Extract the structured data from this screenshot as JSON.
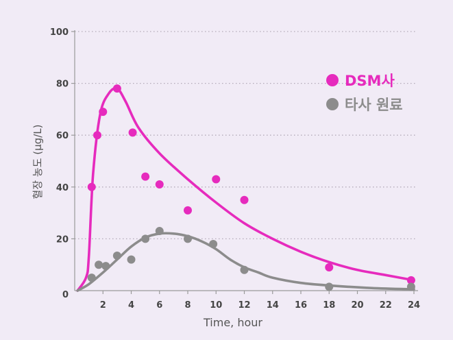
{
  "chart_data": {
    "type": "scatter",
    "title": "",
    "xlabel": "Time, hour",
    "ylabel": "혈장 농도 (µg/L)",
    "xlim": [
      0,
      24
    ],
    "ylim": [
      0,
      100
    ],
    "x_ticks": [
      "2",
      "4",
      "6",
      "8",
      "10",
      "12",
      "14",
      "16",
      "18",
      "20",
      "22",
      "24"
    ],
    "y_ticks": [
      "0",
      "20",
      "40",
      "60",
      "80",
      "100"
    ],
    "grid": "horizontal dotted",
    "legend_position": "top-right",
    "series": [
      {
        "name": "DSM사",
        "color": "#e62bbd",
        "points": [
          {
            "x": 1.2,
            "y": 40
          },
          {
            "x": 1.6,
            "y": 60
          },
          {
            "x": 2.0,
            "y": 69
          },
          {
            "x": 3.0,
            "y": 78
          },
          {
            "x": 4.1,
            "y": 61
          },
          {
            "x": 5.0,
            "y": 44
          },
          {
            "x": 6.0,
            "y": 41
          },
          {
            "x": 8.0,
            "y": 31
          },
          {
            "x": 10.0,
            "y": 43
          },
          {
            "x": 12.0,
            "y": 35
          },
          {
            "x": 18.0,
            "y": 9
          },
          {
            "x": 23.8,
            "y": 4
          }
        ],
        "curve": [
          {
            "x": 0.2,
            "y": 0
          },
          {
            "x": 0.8,
            "y": 5
          },
          {
            "x": 1.0,
            "y": 13
          },
          {
            "x": 1.3,
            "y": 45
          },
          {
            "x": 1.8,
            "y": 68
          },
          {
            "x": 2.4,
            "y": 76
          },
          {
            "x": 3.0,
            "y": 78
          },
          {
            "x": 3.6,
            "y": 73
          },
          {
            "x": 4.5,
            "y": 63
          },
          {
            "x": 6.0,
            "y": 53
          },
          {
            "x": 8.0,
            "y": 43
          },
          {
            "x": 10.0,
            "y": 34
          },
          {
            "x": 12.0,
            "y": 26
          },
          {
            "x": 14.0,
            "y": 20
          },
          {
            "x": 16.0,
            "y": 15
          },
          {
            "x": 18.0,
            "y": 11
          },
          {
            "x": 20.0,
            "y": 8
          },
          {
            "x": 22.0,
            "y": 6
          },
          {
            "x": 24.0,
            "y": 4
          }
        ]
      },
      {
        "name": "타사 원료",
        "color": "#8c8c8c",
        "points": [
          {
            "x": 1.2,
            "y": 5
          },
          {
            "x": 1.7,
            "y": 10
          },
          {
            "x": 2.2,
            "y": 9.5
          },
          {
            "x": 3.0,
            "y": 13.5
          },
          {
            "x": 4.0,
            "y": 12
          },
          {
            "x": 5.0,
            "y": 20
          },
          {
            "x": 6.0,
            "y": 23
          },
          {
            "x": 8.0,
            "y": 20
          },
          {
            "x": 9.8,
            "y": 18
          },
          {
            "x": 12.0,
            "y": 8
          },
          {
            "x": 18.0,
            "y": 1.5
          },
          {
            "x": 23.8,
            "y": 1.5
          }
        ],
        "curve": [
          {
            "x": 0.2,
            "y": 0
          },
          {
            "x": 1.0,
            "y": 2.5
          },
          {
            "x": 2.0,
            "y": 7
          },
          {
            "x": 3.0,
            "y": 12
          },
          {
            "x": 4.0,
            "y": 17
          },
          {
            "x": 5.0,
            "y": 20.5
          },
          {
            "x": 6.0,
            "y": 22
          },
          {
            "x": 7.0,
            "y": 22
          },
          {
            "x": 8.0,
            "y": 21
          },
          {
            "x": 9.0,
            "y": 19
          },
          {
            "x": 10.0,
            "y": 16
          },
          {
            "x": 11.0,
            "y": 12
          },
          {
            "x": 12.0,
            "y": 9
          },
          {
            "x": 13.0,
            "y": 7
          },
          {
            "x": 14.0,
            "y": 5
          },
          {
            "x": 16.0,
            "y": 3
          },
          {
            "x": 18.0,
            "y": 2
          },
          {
            "x": 21.0,
            "y": 1
          },
          {
            "x": 24.0,
            "y": 0.5
          }
        ]
      }
    ]
  }
}
